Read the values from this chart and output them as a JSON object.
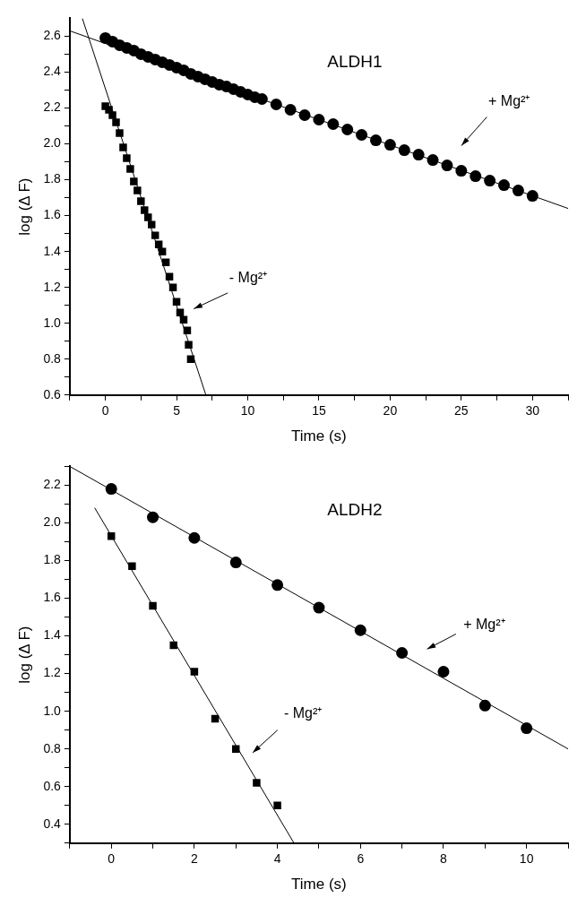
{
  "chart_data": [
    {
      "type": "scatter",
      "title": "ALDH1",
      "xlabel": "Time (s)",
      "ylabel": "log (Δ F)",
      "xlim": [
        -2.5,
        32.5
      ],
      "ylim": [
        0.6,
        2.7
      ],
      "xticks": [
        {
          "value": -2.5,
          "label": null
        },
        0,
        {
          "value": 2.5,
          "label": null
        },
        5,
        {
          "value": 7.5,
          "label": null
        },
        10,
        {
          "value": 12.5,
          "label": null
        },
        15,
        {
          "value": 17.5,
          "label": null
        },
        20,
        {
          "value": 22.5,
          "label": null
        },
        25,
        {
          "value": 27.5,
          "label": null
        },
        30,
        {
          "value": 32.5,
          "label": null
        }
      ],
      "yticks": [
        {
          "value": 0.6,
          "label": "0.6"
        },
        {
          "value": 0.7,
          "label": null
        },
        {
          "value": 0.8,
          "label": "0.8"
        },
        {
          "value": 0.9,
          "label": null
        },
        {
          "value": 1.0,
          "label": "1.0"
        },
        {
          "value": 1.1,
          "label": null
        },
        {
          "value": 1.2,
          "label": "1.2"
        },
        {
          "value": 1.3,
          "label": null
        },
        {
          "value": 1.4,
          "label": "1.4"
        },
        {
          "value": 1.5,
          "label": null
        },
        {
          "value": 1.6,
          "label": "1.6"
        },
        {
          "value": 1.7,
          "label": null
        },
        {
          "value": 1.8,
          "label": "1.8"
        },
        {
          "value": 1.9,
          "label": null
        },
        {
          "value": 2.0,
          "label": "2.0"
        },
        {
          "value": 2.1,
          "label": null
        },
        {
          "value": 2.2,
          "label": "2.2"
        },
        {
          "value": 2.3,
          "label": null
        },
        {
          "value": 2.4,
          "label": "2.4"
        },
        {
          "value": 2.5,
          "label": null
        },
        {
          "value": 2.6,
          "label": "2.6"
        }
      ],
      "grid": false,
      "legend": false,
      "series": [
        {
          "type": "scatter",
          "marker": "circle",
          "color": "#000000",
          "x": [
            0,
            0.5,
            1,
            1.5,
            2,
            2.5,
            3,
            3.5,
            4,
            4.5,
            5,
            5.5,
            6,
            6.5,
            7,
            7.5,
            8,
            8.5,
            9,
            9.5,
            10,
            10.5,
            11,
            12,
            13,
            14,
            15,
            16,
            17,
            18,
            19,
            20,
            21,
            22,
            23,
            24,
            25,
            26,
            27,
            28,
            29,
            30
          ],
          "values": [
            2.59,
            2.57,
            2.55,
            2.535,
            2.52,
            2.5,
            2.485,
            2.47,
            2.455,
            2.44,
            2.425,
            2.41,
            2.39,
            2.375,
            2.36,
            2.345,
            2.33,
            2.32,
            2.305,
            2.29,
            2.275,
            2.26,
            2.25,
            2.22,
            2.19,
            2.16,
            2.135,
            2.11,
            2.08,
            2.05,
            2.02,
            1.995,
            1.965,
            1.94,
            1.91,
            1.88,
            1.85,
            1.82,
            1.795,
            1.77,
            1.74,
            1.71
          ]
        },
        {
          "type": "scatter",
          "marker": "square",
          "color": "#000000",
          "x": [
            0,
            0.25,
            0.5,
            0.75,
            1,
            1.25,
            1.5,
            1.75,
            2,
            2.25,
            2.5,
            2.75,
            3,
            3.25,
            3.5,
            3.75,
            4,
            4.25,
            4.5,
            4.75,
            5,
            5.25,
            5.5,
            5.75,
            5.85,
            6
          ],
          "values": [
            2.21,
            2.19,
            2.16,
            2.12,
            2.06,
            1.98,
            1.92,
            1.86,
            1.79,
            1.74,
            1.68,
            1.63,
            1.59,
            1.55,
            1.49,
            1.44,
            1.4,
            1.34,
            1.26,
            1.2,
            1.12,
            1.06,
            1.02,
            0.96,
            0.88,
            0.8
          ]
        },
        {
          "type": "line",
          "marker": "none",
          "color": "#000000",
          "x": [
            -2.5,
            32.5
          ],
          "values": [
            2.63,
            1.64
          ]
        },
        {
          "type": "line",
          "marker": "none",
          "color": "#000000",
          "x": [
            -1.62,
            7.06
          ],
          "values": [
            2.7,
            0.6
          ]
        }
      ],
      "annotations": [
        "+ Mg²⁺",
        "- Mg²⁺"
      ]
    },
    {
      "type": "scatter",
      "title": "ALDH2",
      "xlabel": "Time (s)",
      "ylabel": "log (Δ F)",
      "xlim": [
        -1,
        11
      ],
      "ylim": [
        0.3,
        2.3
      ],
      "xticks": [
        {
          "value": -1,
          "label": null
        },
        0,
        {
          "value": 1,
          "label": null
        },
        2,
        {
          "value": 3,
          "label": null
        },
        4,
        {
          "value": 5,
          "label": null
        },
        6,
        {
          "value": 7,
          "label": null
        },
        8,
        {
          "value": 9,
          "label": null
        },
        10,
        {
          "value": 11,
          "label": null
        }
      ],
      "yticks": [
        {
          "value": 0.3,
          "label": null
        },
        {
          "value": 0.4,
          "label": "0.4"
        },
        {
          "value": 0.5,
          "label": null
        },
        {
          "value": 0.6,
          "label": "0.6"
        },
        {
          "value": 0.7,
          "label": null
        },
        {
          "value": 0.8,
          "label": "0.8"
        },
        {
          "value": 0.9,
          "label": null
        },
        {
          "value": 1.0,
          "label": "1.0"
        },
        {
          "value": 1.1,
          "label": null
        },
        {
          "value": 1.2,
          "label": "1.2"
        },
        {
          "value": 1.3,
          "label": null
        },
        {
          "value": 1.4,
          "label": "1.4"
        },
        {
          "value": 1.5,
          "label": null
        },
        {
          "value": 1.6,
          "label": "1.6"
        },
        {
          "value": 1.7,
          "label": null
        },
        {
          "value": 1.8,
          "label": "1.8"
        },
        {
          "value": 1.9,
          "label": null
        },
        {
          "value": 2.0,
          "label": "2.0"
        },
        {
          "value": 2.1,
          "label": null
        },
        {
          "value": 2.2,
          "label": "2.2"
        },
        {
          "value": 2.3,
          "label": null
        }
      ],
      "grid": false,
      "legend": false,
      "series": [
        {
          "type": "scatter",
          "marker": "circle",
          "color": "#000000",
          "x": [
            0,
            1,
            2,
            3,
            4,
            5,
            6,
            7,
            8,
            9,
            10
          ],
          "values": [
            2.18,
            2.03,
            1.92,
            1.79,
            1.67,
            1.55,
            1.43,
            1.31,
            1.21,
            1.03,
            0.91
          ]
        },
        {
          "type": "scatter",
          "marker": "square",
          "color": "#000000",
          "x": [
            0,
            0.5,
            1,
            1.5,
            2,
            2.5,
            3,
            3.5,
            4
          ],
          "values": [
            1.93,
            1.77,
            1.56,
            1.35,
            1.21,
            0.96,
            0.8,
            0.62,
            0.5
          ]
        },
        {
          "type": "line",
          "marker": "none",
          "color": "#000000",
          "x": [
            -1,
            11
          ],
          "values": [
            2.3,
            0.8
          ]
        },
        {
          "type": "line",
          "marker": "none",
          "color": "#000000",
          "x": [
            -0.4,
            4.4
          ],
          "values": [
            2.08,
            0.3
          ]
        }
      ],
      "annotations": [
        "+ Mg²⁺",
        "- Mg²⁺"
      ]
    }
  ]
}
